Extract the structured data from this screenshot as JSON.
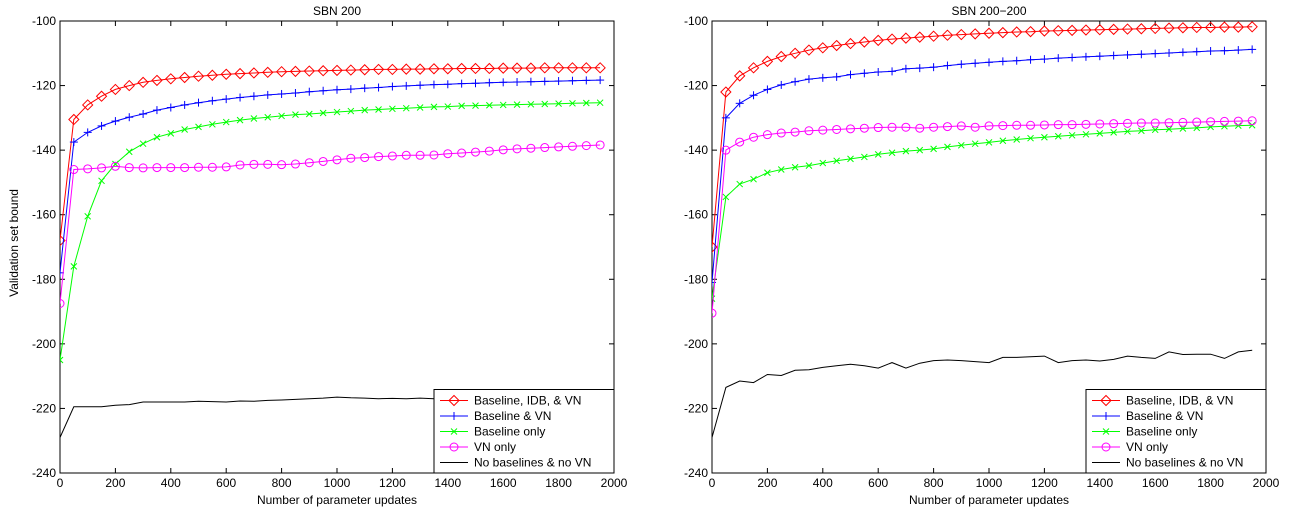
{
  "colors": {
    "red": "#ff0000",
    "blue": "#0000ff",
    "green": "#00ff00",
    "magenta": "#ff00ff",
    "black": "#000000"
  },
  "chart_data": [
    {
      "type": "line",
      "title": "SBN 200",
      "xlabel": "Number of parameter updates",
      "ylabel": "Validation set bound",
      "xlim": [
        0,
        2000
      ],
      "ylim": [
        -240,
        -100
      ],
      "xticks": [
        0,
        200,
        400,
        600,
        800,
        1000,
        1200,
        1400,
        1600,
        1800,
        2000
      ],
      "yticks": [
        -240,
        -220,
        -200,
        -180,
        -160,
        -140,
        -120,
        -100
      ],
      "grid": false,
      "legend_position": "bottom-right",
      "x": [
        0,
        50,
        100,
        150,
        200,
        250,
        300,
        350,
        400,
        450,
        500,
        550,
        600,
        650,
        700,
        750,
        800,
        850,
        900,
        950,
        1000,
        1050,
        1100,
        1150,
        1200,
        1250,
        1300,
        1350,
        1400,
        1450,
        1500,
        1550,
        1600,
        1650,
        1700,
        1750,
        1800,
        1850,
        1900,
        1950
      ],
      "series": [
        {
          "name": "Baseline, IDB, & VN",
          "color": "#ff0000",
          "marker": "diamond",
          "values": [
            -168,
            -130.5,
            -126,
            -123.3,
            -121.2,
            -120,
            -119,
            -118.4,
            -117.9,
            -117.5,
            -117.1,
            -116.8,
            -116.5,
            -116.3,
            -116.1,
            -115.9,
            -115.7,
            -115.6,
            -115.5,
            -115.4,
            -115.3,
            -115.2,
            -115.1,
            -115,
            -115,
            -114.9,
            -114.9,
            -114.8,
            -114.8,
            -114.7,
            -114.7,
            -114.7,
            -114.6,
            -114.6,
            -114.6,
            -114.5,
            -114.5,
            -114.5,
            -114.5,
            -114.5
          ]
        },
        {
          "name": "Baseline & VN",
          "color": "#0000ff",
          "marker": "plus",
          "values": [
            -178,
            -137.5,
            -134.5,
            -132.5,
            -131,
            -129.8,
            -128.8,
            -127.6,
            -126.8,
            -126,
            -125.3,
            -124.7,
            -124.2,
            -123.7,
            -123.3,
            -122.9,
            -122.6,
            -122.3,
            -121.9,
            -121.6,
            -121.3,
            -121.1,
            -120.8,
            -120.6,
            -120.3,
            -120.1,
            -119.9,
            -119.7,
            -119.6,
            -119.4,
            -119.3,
            -119.1,
            -119,
            -118.9,
            -118.8,
            -118.7,
            -118.6,
            -118.5,
            -118.4,
            -118.3
          ]
        },
        {
          "name": "Baseline only",
          "color": "#00ff00",
          "marker": "x",
          "values": [
            -205,
            -176,
            -160.5,
            -149.5,
            -144.3,
            -140.5,
            -138,
            -136,
            -134.8,
            -133.6,
            -132.8,
            -132,
            -131.3,
            -130.7,
            -130.2,
            -129.8,
            -129.4,
            -129,
            -128.8,
            -128.5,
            -128.2,
            -127.9,
            -127.6,
            -127.4,
            -127.2,
            -127,
            -126.8,
            -126.6,
            -126.5,
            -126.3,
            -126.2,
            -126.1,
            -126,
            -125.9,
            -125.8,
            -125.7,
            -125.6,
            -125.5,
            -125.4,
            -125.3
          ]
        },
        {
          "name": "VN only",
          "color": "#ff00ff",
          "marker": "circle",
          "values": [
            -187.5,
            -146,
            -145.8,
            -145.5,
            -145,
            -145.4,
            -145.5,
            -145.4,
            -145.4,
            -145.4,
            -145.3,
            -145.3,
            -145.2,
            -144.6,
            -144.4,
            -144.4,
            -144.5,
            -144.3,
            -143.9,
            -143.5,
            -143,
            -142.5,
            -142.3,
            -142,
            -141.8,
            -141.6,
            -141.6,
            -141.5,
            -141.1,
            -140.9,
            -140.6,
            -140.3,
            -139.9,
            -139.6,
            -139.4,
            -139.2,
            -139,
            -138.8,
            -138.6,
            -138.4
          ]
        },
        {
          "name": "No baselines & no VN",
          "color": "#000000",
          "marker": "none",
          "values": [
            -229,
            -219.5,
            -219.5,
            -219.5,
            -219,
            -218.8,
            -218,
            -218,
            -218,
            -218,
            -217.8,
            -217.9,
            -218,
            -217.7,
            -217.8,
            -217.5,
            -217.4,
            -217.2,
            -217,
            -216.8,
            -216.5,
            -216.7,
            -216.8,
            -217,
            -216.9,
            -217,
            -216.8,
            -217,
            -216.9,
            -216.9,
            -216.8,
            -216.8,
            -216.8,
            -216.7,
            -216.7,
            -216.7,
            -216.6,
            -216.6,
            -216.6,
            -216.5
          ]
        }
      ]
    },
    {
      "type": "line",
      "title": "SBN 200−200",
      "xlabel": "Number of parameter updates",
      "ylabel": "",
      "xlim": [
        0,
        2000
      ],
      "ylim": [
        -240,
        -100
      ],
      "xticks": [
        0,
        200,
        400,
        600,
        800,
        1000,
        1200,
        1400,
        1600,
        1800,
        2000
      ],
      "yticks": [
        -240,
        -220,
        -200,
        -180,
        -160,
        -140,
        -120,
        -100
      ],
      "grid": false,
      "legend_position": "bottom-right",
      "x": [
        0,
        50,
        100,
        150,
        200,
        250,
        300,
        350,
        400,
        450,
        500,
        550,
        600,
        650,
        700,
        750,
        800,
        850,
        900,
        950,
        1000,
        1050,
        1100,
        1150,
        1200,
        1250,
        1300,
        1350,
        1400,
        1450,
        1500,
        1550,
        1600,
        1650,
        1700,
        1750,
        1800,
        1850,
        1900,
        1950
      ],
      "series": [
        {
          "name": "Baseline, IDB, & VN",
          "color": "#ff0000",
          "marker": "diamond",
          "values": [
            -170,
            -122,
            -117,
            -114.5,
            -112.5,
            -111,
            -110,
            -109,
            -108.3,
            -107.6,
            -107,
            -106.5,
            -106,
            -105.6,
            -105.3,
            -105,
            -104.7,
            -104.4,
            -104.2,
            -104,
            -103.8,
            -103.6,
            -103.4,
            -103.3,
            -103.1,
            -103,
            -102.9,
            -102.8,
            -102.7,
            -102.6,
            -102.5,
            -102.4,
            -102.3,
            -102.2,
            -102.1,
            -102,
            -102,
            -101.9,
            -101.9,
            -101.8
          ]
        },
        {
          "name": "Baseline & VN",
          "color": "#0000ff",
          "marker": "plus",
          "values": [
            -181,
            -130,
            -125.5,
            -123,
            -121.2,
            -119.8,
            -118.8,
            -118,
            -117.6,
            -117.3,
            -116.6,
            -116.2,
            -115.8,
            -115.6,
            -114.8,
            -114.6,
            -114.3,
            -113.8,
            -113.4,
            -113.1,
            -112.8,
            -112.5,
            -112.3,
            -112,
            -111.8,
            -111.5,
            -111.3,
            -111.1,
            -110.9,
            -110.7,
            -110.5,
            -110.3,
            -110.1,
            -109.9,
            -109.7,
            -109.5,
            -109.3,
            -109.2,
            -109,
            -108.8
          ]
        },
        {
          "name": "Baseline only",
          "color": "#00ff00",
          "marker": "x",
          "values": [
            -186,
            -154.5,
            -150.5,
            -149,
            -147,
            -146,
            -145.3,
            -144.8,
            -144,
            -143.3,
            -142.7,
            -142.1,
            -141.3,
            -140.8,
            -140.3,
            -140,
            -139.6,
            -139,
            -138.5,
            -138,
            -137.6,
            -137.1,
            -136.7,
            -136.3,
            -136,
            -135.7,
            -135.4,
            -135.1,
            -134.8,
            -134.5,
            -134.2,
            -134,
            -133.7,
            -133.5,
            -133.3,
            -133.1,
            -132.8,
            -132.6,
            -132.4,
            -132.3
          ]
        },
        {
          "name": "VN only",
          "color": "#ff00ff",
          "marker": "circle",
          "values": [
            -190.5,
            -140,
            -137.5,
            -136,
            -135.2,
            -134.7,
            -134.4,
            -134,
            -133.8,
            -133.6,
            -133.4,
            -133.2,
            -133,
            -132.9,
            -132.9,
            -133.2,
            -132.9,
            -132.7,
            -132.5,
            -132.9,
            -132.5,
            -132.4,
            -132.3,
            -132.3,
            -132.2,
            -132.1,
            -132.1,
            -132,
            -131.9,
            -131.8,
            -131.7,
            -131.6,
            -131.6,
            -131.5,
            -131.4,
            -131.3,
            -131.2,
            -131.1,
            -131,
            -130.9
          ]
        },
        {
          "name": "No baselines & no VN",
          "color": "#000000",
          "marker": "none",
          "values": [
            -229,
            -213.5,
            -211.5,
            -212,
            -209.5,
            -209.8,
            -208.2,
            -208,
            -207.3,
            -206.8,
            -206.3,
            -206.8,
            -207.5,
            -205.8,
            -207.5,
            -206,
            -205.2,
            -205,
            -205.2,
            -205.5,
            -205.8,
            -204.2,
            -204.2,
            -204,
            -203.8,
            -205.8,
            -205.2,
            -205,
            -205.3,
            -204.8,
            -203.8,
            -204.2,
            -204.5,
            -202.5,
            -203.3,
            -203.2,
            -203.2,
            -204.5,
            -202.5,
            -202
          ]
        }
      ]
    }
  ]
}
